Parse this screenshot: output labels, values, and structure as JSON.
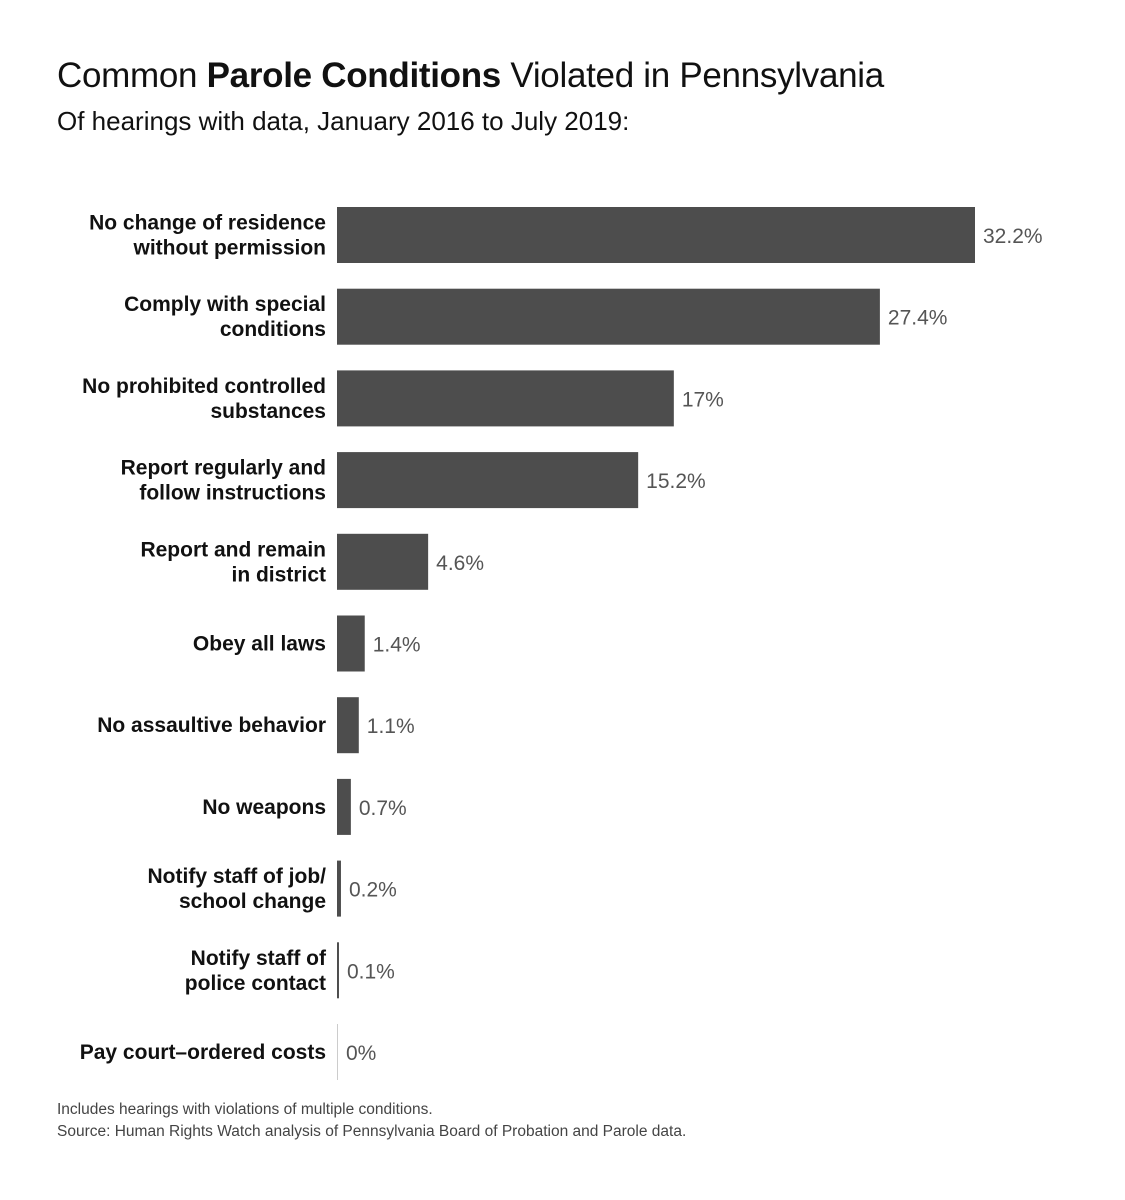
{
  "title": {
    "pre": "Common ",
    "bold": "Parole Conditions",
    "post": " Violated in Pennsylvania"
  },
  "subtitle": "Of hearings with data, January 2016 to July 2019:",
  "chart_data": {
    "type": "bar",
    "orientation": "horizontal",
    "categories": [
      [
        "No change of residence",
        "without permission"
      ],
      [
        "Comply with special",
        "conditions"
      ],
      [
        "No prohibited controlled",
        "substances"
      ],
      [
        "Report regularly and",
        "follow instructions"
      ],
      [
        "Report and remain",
        "in district"
      ],
      [
        "Obey all laws"
      ],
      [
        "No assaultive behavior"
      ],
      [
        "No weapons"
      ],
      [
        "Notify staff of job/",
        "school change"
      ],
      [
        "Notify staff of",
        "police contact"
      ],
      [
        "Pay court–ordered costs"
      ]
    ],
    "values": [
      32.2,
      27.4,
      17,
      15.2,
      4.6,
      1.4,
      1.1,
      0.7,
      0.2,
      0.1,
      0
    ],
    "data_labels": [
      "32.2%",
      "27.4%",
      "17%",
      "15.2%",
      "4.6%",
      "1.4%",
      "1.1%",
      "0.7%",
      "0.2%",
      "0.1%",
      "0%"
    ],
    "unit": "%",
    "bar_color": "#4d4d4d",
    "zero_bar_color": "#cccccc",
    "grid": false,
    "legend": "none"
  },
  "notes": [
    "Includes hearings with violations of multiple conditions.",
    "Source: Human Rights Watch analysis of Pennsylvania Board of Probation and Parole data."
  ]
}
